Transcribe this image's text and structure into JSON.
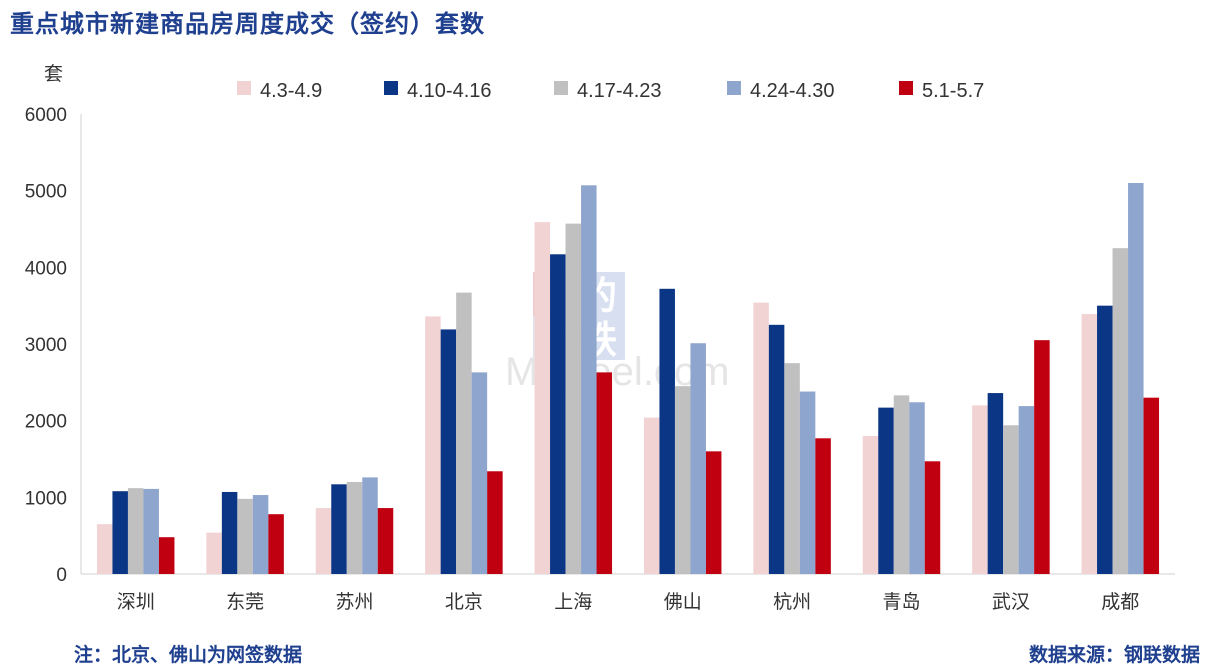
{
  "header": {
    "title": "重点城市新建商品房周度成交（签约）套数"
  },
  "footer": {
    "note": "注：北京、佛山为网签数据",
    "source": "数据来源：钢联数据"
  },
  "watermark": {
    "line1": "我的",
    "line2": "钢铁",
    "line3": "Mysteel.com"
  },
  "chart_data": {
    "type": "bar",
    "title": "重点城市新建商品房周度成交（签约）套数",
    "ylabel": "套",
    "xlabel": "",
    "ylim": [
      0,
      6000
    ],
    "yticks": [
      0,
      1000,
      2000,
      3000,
      4000,
      5000,
      6000
    ],
    "legend_position": "top",
    "grid": false,
    "categories": [
      "深圳",
      "东莞",
      "苏州",
      "北京",
      "上海",
      "佛山",
      "杭州",
      "青岛",
      "武汉",
      "成都"
    ],
    "series": [
      {
        "name": "4.3-4.9",
        "color": "#f2d3d3",
        "values": [
          650,
          540,
          860,
          3360,
          4590,
          2040,
          3540,
          1800,
          2200,
          3390
        ]
      },
      {
        "name": "4.10-4.16",
        "color": "#0b3585",
        "values": [
          1080,
          1070,
          1170,
          3190,
          4170,
          3720,
          3250,
          2170,
          2360,
          3500
        ]
      },
      {
        "name": "4.17-4.23",
        "color": "#c0c0c0",
        "values": [
          1120,
          980,
          1200,
          3670,
          4570,
          2450,
          2750,
          2330,
          1940,
          4250
        ]
      },
      {
        "name": "4.24-4.30",
        "color": "#8ea6cd",
        "values": [
          1110,
          1030,
          1260,
          2630,
          5070,
          3010,
          2380,
          2240,
          2190,
          5100
        ]
      },
      {
        "name": "5.1-5.7",
        "color": "#c00011",
        "values": [
          480,
          780,
          860,
          1340,
          2630,
          1600,
          1770,
          1470,
          3050,
          2300
        ]
      }
    ]
  }
}
